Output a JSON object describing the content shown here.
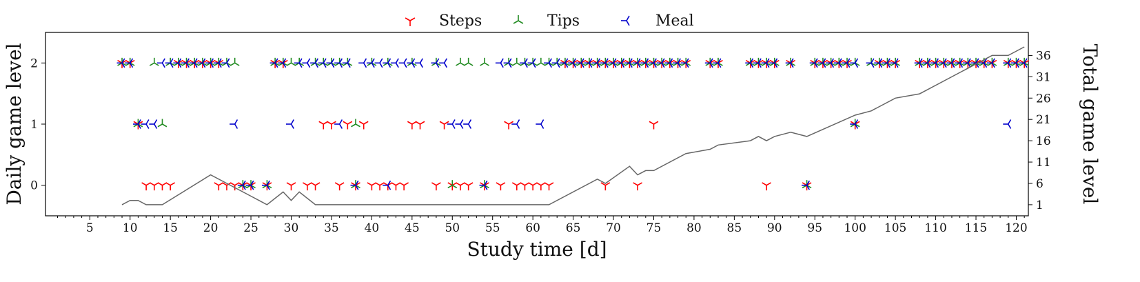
{
  "colors": {
    "steps": "#ff0000",
    "tips": "#228b22",
    "meal": "#0000cc",
    "total": "#666666",
    "axis": "#000000"
  },
  "chart_data": {
    "type": "scatter",
    "xlabel": "Study time [d]",
    "ylabel_left": "Daily game level",
    "ylabel_right": "Total game level",
    "xlim": [
      -0.5,
      121.5
    ],
    "ylim_left": [
      -0.5,
      2.5
    ],
    "ylim_right": [
      -1.6,
      41.4
    ],
    "x_ticks": [
      5,
      10,
      15,
      20,
      25,
      30,
      35,
      40,
      45,
      50,
      55,
      60,
      65,
      70,
      75,
      80,
      85,
      90,
      95,
      100,
      105,
      110,
      115,
      120
    ],
    "x_tick_labels": [
      "5",
      "10",
      "15",
      "20",
      "25",
      "30",
      "35",
      "40",
      "45",
      "50",
      "55",
      "60",
      "65",
      "70",
      "75",
      "80",
      "85",
      "90",
      "95",
      "100",
      "105",
      "110",
      "115",
      "120"
    ],
    "y_left_ticks": [
      0,
      1,
      2
    ],
    "y_left_tick_labels": [
      "0",
      "1",
      "2"
    ],
    "y_right_ticks": [
      1,
      6,
      11,
      16,
      21,
      26,
      31,
      36
    ],
    "y_right_tick_labels": [
      "1",
      "6",
      "11",
      "16",
      "21",
      "26",
      "31",
      "36"
    ],
    "legend": {
      "position": "top-center",
      "entries": [
        "Steps",
        "Tips",
        "Meal"
      ]
    },
    "series": [
      {
        "name": "Steps",
        "marker": "tri_down",
        "points": {
          "0": [
            12,
            13,
            14,
            15,
            21,
            22,
            23,
            24,
            25,
            27,
            30,
            32,
            33,
            36,
            38,
            40,
            41,
            42,
            43,
            44,
            48,
            50,
            51,
            52,
            54,
            56,
            58,
            59,
            60,
            61,
            62,
            69,
            73,
            89,
            94
          ],
          "1": [
            11,
            34,
            35,
            37,
            39,
            45,
            46,
            49,
            57,
            75,
            100
          ],
          "2": [
            9,
            10,
            16,
            17,
            18,
            19,
            20,
            21,
            28,
            29,
            64,
            65,
            66,
            67,
            68,
            69,
            70,
            71,
            72,
            73,
            74,
            75,
            76,
            77,
            78,
            79,
            82,
            83,
            87,
            88,
            89,
            90,
            92,
            95,
            96,
            97,
            98,
            99,
            103,
            104,
            105,
            108,
            109,
            110,
            111,
            112,
            113,
            114,
            115,
            116,
            117,
            119,
            120,
            121
          ]
        }
      },
      {
        "name": "Tips",
        "marker": "tri_up",
        "points": {
          "0": [
            24,
            25,
            27,
            38,
            50,
            54,
            94
          ],
          "1": [
            11,
            14,
            38,
            100
          ],
          "2": [
            9,
            10,
            13,
            15,
            16,
            17,
            18,
            19,
            20,
            21,
            22,
            23,
            28,
            29,
            30,
            31,
            33,
            34,
            35,
            36,
            37,
            40,
            42,
            45,
            48,
            51,
            52,
            54,
            57,
            58,
            59,
            60,
            61,
            62,
            63,
            64,
            65,
            66,
            67,
            68,
            69,
            70,
            71,
            72,
            73,
            74,
            75,
            76,
            77,
            78,
            79,
            82,
            83,
            87,
            88,
            89,
            90,
            92,
            95,
            96,
            97,
            98,
            99,
            100,
            102,
            103,
            104,
            105,
            108,
            109,
            110,
            111,
            112,
            113,
            114,
            115,
            116,
            117,
            119,
            120,
            121
          ]
        }
      },
      {
        "name": "Meal",
        "marker": "tri_left",
        "points": {
          "0": [
            24,
            25,
            27,
            38,
            42,
            54,
            94
          ],
          "1": [
            11,
            12,
            13,
            23,
            30,
            36,
            50,
            51,
            52,
            58,
            61,
            100,
            119
          ],
          "2": [
            9,
            10,
            14,
            15,
            16,
            17,
            18,
            19,
            20,
            21,
            22,
            28,
            29,
            31,
            32,
            33,
            34,
            35,
            36,
            37,
            39,
            40,
            41,
            42,
            43,
            44,
            45,
            46,
            48,
            49,
            56,
            57,
            59,
            60,
            62,
            63,
            64,
            65,
            66,
            67,
            68,
            69,
            70,
            71,
            72,
            73,
            74,
            75,
            76,
            77,
            78,
            79,
            82,
            83,
            87,
            88,
            89,
            90,
            92,
            95,
            96,
            97,
            98,
            99,
            100,
            102,
            103,
            104,
            105,
            108,
            109,
            110,
            111,
            112,
            113,
            114,
            115,
            116,
            117,
            119,
            120,
            121
          ]
        }
      }
    ],
    "total_level": {
      "axis": "right",
      "x": [
        9,
        10,
        11,
        12,
        13,
        14,
        20,
        25,
        27,
        29,
        30,
        31,
        33,
        62,
        68,
        69,
        72,
        73,
        74,
        75,
        79,
        82,
        83,
        87,
        88,
        89,
        90,
        92,
        94,
        100,
        102,
        105,
        108,
        117,
        119,
        121
      ],
      "y": [
        1,
        2,
        2,
        1,
        1,
        1,
        8,
        3,
        1,
        4,
        2,
        4,
        1,
        1,
        7,
        6,
        10,
        8,
        9,
        9,
        13,
        14,
        15,
        16,
        17,
        16,
        17,
        18,
        17,
        22,
        23,
        26,
        27,
        36,
        36,
        38
      ]
    }
  }
}
